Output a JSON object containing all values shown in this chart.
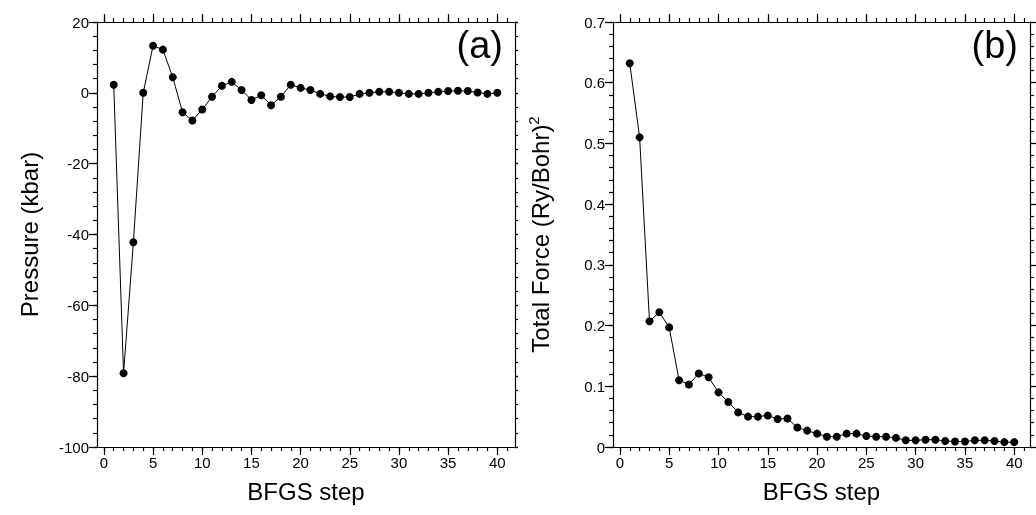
{
  "chart_data": [
    {
      "type": "line",
      "xlabel": "BFGS step",
      "ylabel": "Pressure (kbar)",
      "annotations": [
        "(a)"
      ],
      "marker": "circle",
      "line_style": "solid",
      "x": [
        1,
        2,
        3,
        4,
        5,
        6,
        7,
        8,
        9,
        10,
        11,
        12,
        13,
        14,
        15,
        16,
        17,
        18,
        19,
        20,
        21,
        22,
        23,
        24,
        25,
        26,
        27,
        28,
        29,
        30,
        31,
        32,
        33,
        34,
        35,
        36,
        37,
        38,
        39,
        40
      ],
      "xlim": [
        -0.7,
        41.8
      ],
      "xticks": [
        0,
        5,
        10,
        15,
        20,
        25,
        30,
        35,
        40
      ],
      "ylim": [
        -100,
        20
      ],
      "yticks": [
        -100,
        -80,
        -60,
        -40,
        -20,
        0,
        20
      ],
      "series": [
        {
          "color": "#000000",
          "values": [
            2.3,
            -79.2,
            -42.2,
            0,
            13.3,
            12.2,
            4.4,
            -5.5,
            -7.8,
            -4.7,
            -1.1,
            2.0,
            3.1,
            0.8,
            -2.0,
            -0.7,
            -3.5,
            -1.1,
            2.3,
            1.4,
            0.8,
            -0.3,
            -1.0,
            -1.2,
            -1.2,
            -0.3,
            0,
            0.3,
            0.3,
            0,
            -0.3,
            -0.3,
            0,
            0.3,
            0.5,
            0.6,
            0.5,
            0.1,
            -0.3,
            0
          ]
        }
      ]
    },
    {
      "type": "line",
      "xlabel": "BFGS step",
      "ylabel": "Total Force (Ry/Bohr)$^{2}$",
      "annotations": [
        "(b)"
      ],
      "marker": "circle",
      "line_style": "solid",
      "x": [
        1,
        2,
        3,
        4,
        5,
        6,
        7,
        8,
        9,
        10,
        11,
        12,
        13,
        14,
        15,
        16,
        17,
        18,
        19,
        20,
        21,
        22,
        23,
        24,
        25,
        26,
        27,
        28,
        29,
        30,
        31,
        32,
        33,
        34,
        35,
        36,
        37,
        38,
        39,
        40
      ],
      "xlim": [
        -0.7,
        41.6
      ],
      "xticks": [
        0,
        5,
        10,
        15,
        20,
        25,
        30,
        35,
        40
      ],
      "ylim": [
        0,
        0.7
      ],
      "yticks": [
        0,
        0.1,
        0.2,
        0.3,
        0.4,
        0.5,
        0.6,
        0.7
      ],
      "series": [
        {
          "color": "#000000",
          "values": [
            0.632,
            0.51,
            0.207,
            0.222,
            0.197,
            0.11,
            0.103,
            0.121,
            0.115,
            0.09,
            0.074,
            0.057,
            0.05,
            0.05,
            0.052,
            0.046,
            0.047,
            0.032,
            0.027,
            0.022,
            0.017,
            0.017,
            0.022,
            0.022,
            0.018,
            0.017,
            0.017,
            0.015,
            0.011,
            0.011,
            0.012,
            0.012,
            0.01,
            0.009,
            0.009,
            0.011,
            0.011,
            0.01,
            0.008,
            0.008
          ]
        }
      ]
    }
  ]
}
